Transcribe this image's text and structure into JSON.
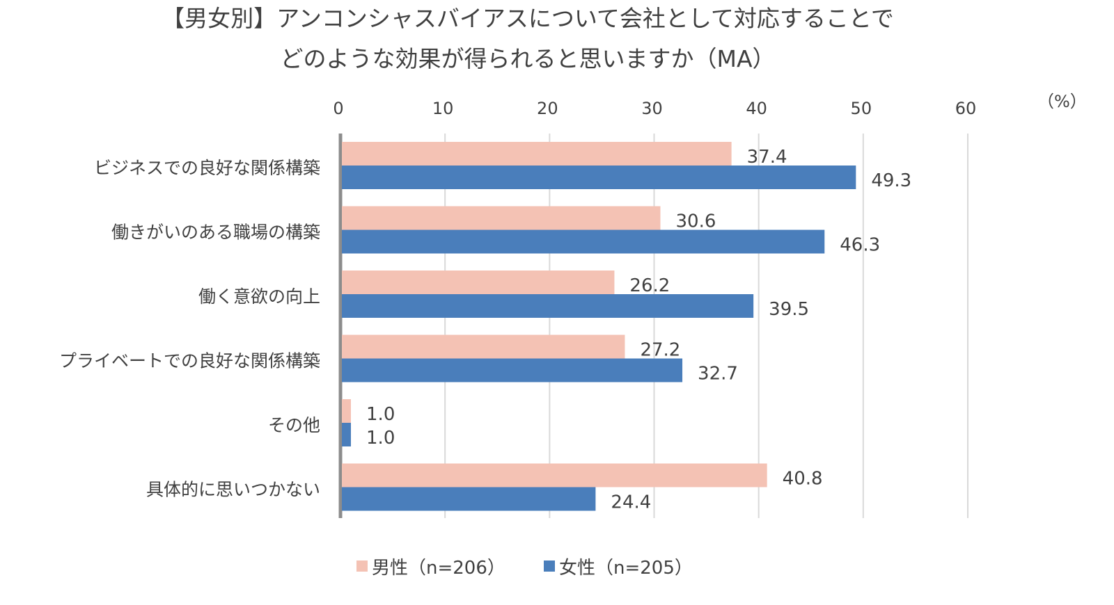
{
  "chart_data": {
    "type": "bar",
    "orientation": "horizontal",
    "title_lines": [
      "【男女別】アンコンシャスバイアスについて会社として対応することで",
      "どのような効果が得られると思いますか（MA）"
    ],
    "unit_label": "（%）",
    "xlim": [
      0,
      60
    ],
    "xticks": [
      0,
      10,
      20,
      30,
      40,
      50,
      60
    ],
    "categories": [
      "ビジネスでの良好な関係構築",
      "働きがいのある職場の構築",
      "働く意欲の向上",
      "プライベートでの良好な関係構築",
      "その他",
      "具体的に思いつかない"
    ],
    "series": [
      {
        "name": "男性（n=206）",
        "color": "#f4c2b4",
        "values": [
          37.4,
          30.6,
          26.2,
          27.2,
          1.0,
          40.8
        ]
      },
      {
        "name": "女性（n=205）",
        "color": "#4a7ebb",
        "values": [
          49.3,
          46.3,
          39.5,
          32.7,
          1.0,
          24.4
        ]
      }
    ],
    "grid": true,
    "legend_position": "bottom"
  }
}
